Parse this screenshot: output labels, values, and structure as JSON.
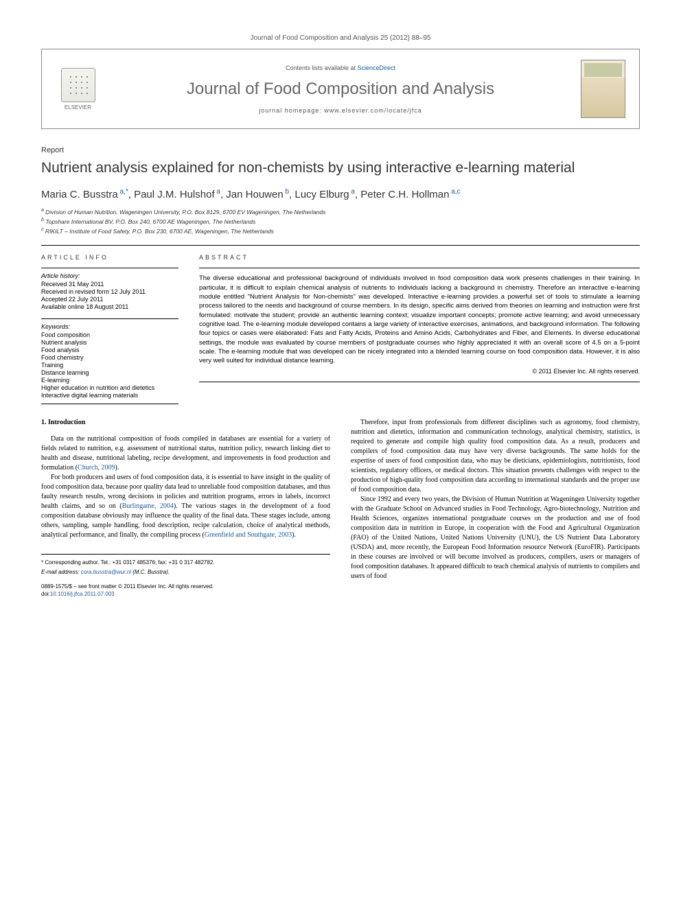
{
  "header": {
    "journal_ref": "Journal of Food Composition and Analysis 25 (2012) 88–95",
    "contents_prefix": "Contents lists available at ",
    "contents_link": "ScienceDirect",
    "journal_title": "Journal of Food Composition and Analysis",
    "homepage_prefix": "journal homepage: ",
    "homepage_url": "www.elsevier.com/locate/jfca",
    "publisher": "ELSEVIER"
  },
  "article": {
    "type": "Report",
    "title": "Nutrient analysis explained for non-chemists by using interactive e-learning material",
    "authors_html": "Maria C. Busstra",
    "authors": [
      {
        "name": "Maria C. Busstra",
        "aff": "a,*"
      },
      {
        "name": "Paul J.M. Hulshof",
        "aff": "a"
      },
      {
        "name": "Jan Houwen",
        "aff": "b"
      },
      {
        "name": "Lucy Elburg",
        "aff": "a"
      },
      {
        "name": "Peter C.H. Hollman",
        "aff": "a,c"
      }
    ],
    "affiliations": [
      "Division of Human Nutrition, Wageningen University, P.O. Box 8129, 6700 EV Wageningen, The Netherlands",
      "Topshare International BV, P.O. Box 240, 6700 AE Wageningen, The Netherlands",
      "RIKILT – Institute of Food Safety, P.O. Box 230, 6700 AE, Wageningen, The Netherlands"
    ],
    "aff_labels": [
      "a",
      "b",
      "c"
    ]
  },
  "info": {
    "article_info_heading": "ARTICLE INFO",
    "history_label": "Article history:",
    "history": [
      "Received 31 May 2011",
      "Received in revised form 12 July 2011",
      "Accepted 22 July 2011",
      "Available online 18 August 2011"
    ],
    "keywords_label": "Keywords:",
    "keywords": [
      "Food composition",
      "Nutrient analysis",
      "Food analysis",
      "Food chemistry",
      "Training",
      "Distance learning",
      "E-learning",
      "Higher education in nutrition and dietetics",
      "Interactive digital learning materials"
    ]
  },
  "abstract": {
    "heading": "ABSTRACT",
    "text": "The diverse educational and professional background of individuals involved in food composition data work presents challenges in their training. In particular, it is difficult to explain chemical analysis of nutrients to individuals lacking a background in chemistry. Therefore an interactive e-learning module entitled \"Nutrient Analysis for Non-chemists\" was developed. Interactive e-learning provides a powerful set of tools to stimulate a learning process tailored to the needs and background of course members. In its design, specific aims derived from theories on learning and instruction were first formulated: motivate the student; provide an authentic learning context; visualize important concepts; promote active learning; and avoid unnecessary cognitive load. The e-learning module developed contains a large variety of interactive exercises, animations, and background information. The following four topics or cases were elaborated: Fats and Fatty Acids, Proteins and Amino Acids, Carbohydrates and Fiber, and Elements. In diverse educational settings, the module was evaluated by course members of postgraduate courses who highly appreciated it with an overall score of 4.5 on a 5-point scale. The e-learning module that was developed can be nicely integrated into a blended learning course on food composition data. However, it is also very well suited for individual distance learning.",
    "copyright": "© 2011 Elsevier Inc. All rights reserved."
  },
  "body": {
    "section_heading": "1. Introduction",
    "col1_paras": [
      "Data on the nutritional composition of foods compiled in databases are essential for a variety of fields related to nutrition, e.g. assessment of nutritional status, nutrition policy, research linking diet to health and disease, nutritional labeling, recipe development, and improvements in food production and formulation (Church, 2009).",
      "For both producers and users of food composition data, it is essential to have insight in the quality of food composition data, because poor quality data lead to unreliable food composition databases, and thus faulty research results, wrong decisions in policies and nutrition programs, errors in labels, incorrect health claims, and so on (Burlingame, 2004). The various stages in the development of a food composition database obviously may influence the quality of the final data. These stages include, among others, sampling, sample handling, food description, recipe calculation, choice of analytical methods, analytical performance, and finally, the compiling process (Greenfield and Southgate, 2003)."
    ],
    "col2_paras": [
      "Therefore, input from professionals from different disciplines such as agronomy, food chemistry, nutrition and dietetics, information and communication technology, analytical chemistry, statistics, is required to generate and compile high quality food composition data. As a result, producers and compilers of food composition data may have very diverse backgrounds. The same holds for the expertise of users of food composition data, who may be dieticians, epidemiologists, nutritionists, food scientists, regulatory officers, or medical doctors. This situation presents challenges with respect to the production of high-quality food composition data according to international standards and the proper use of food composition data.",
      "Since 1992 and every two years, the Division of Human Nutrition at Wageningen University together with the Graduate School on Advanced studies in Food Technology, Agro-biotechnology, Nutrition and Health Sciences, organizes international postgraduate courses on the production and use of food composition data in nutrition in Europe, in cooperation with the Food and Agricultural Organization (FAO) of the United Nations, United Nations University (UNU), the US Nutrient Data Laboratory (USDA) and, more recently, the European Food Information resource Network (EuroFIR). Participants in these courses are involved or will become involved as producers, compilers, users or managers of food composition databases. It appeared difficult to teach chemical analysis of nutrients to compilers and users of food"
    ]
  },
  "footer": {
    "corresponding": "* Corresponding author. Tel.: +31 0317 485376; fax: +31 0 317 482782.",
    "email_label": "E-mail address: ",
    "email": "cora.busstra@wur.nl",
    "email_author": " (M.C. Busstra).",
    "front_matter": "0889-1575/$ – see front matter © 2011 Elsevier Inc. All rights reserved.",
    "doi_label": "doi:",
    "doi": "10.1016/j.jfca.2011.07.003"
  },
  "colors": {
    "link": "#1a5599",
    "text": "#000000",
    "gray": "#666666",
    "border": "#888888"
  }
}
